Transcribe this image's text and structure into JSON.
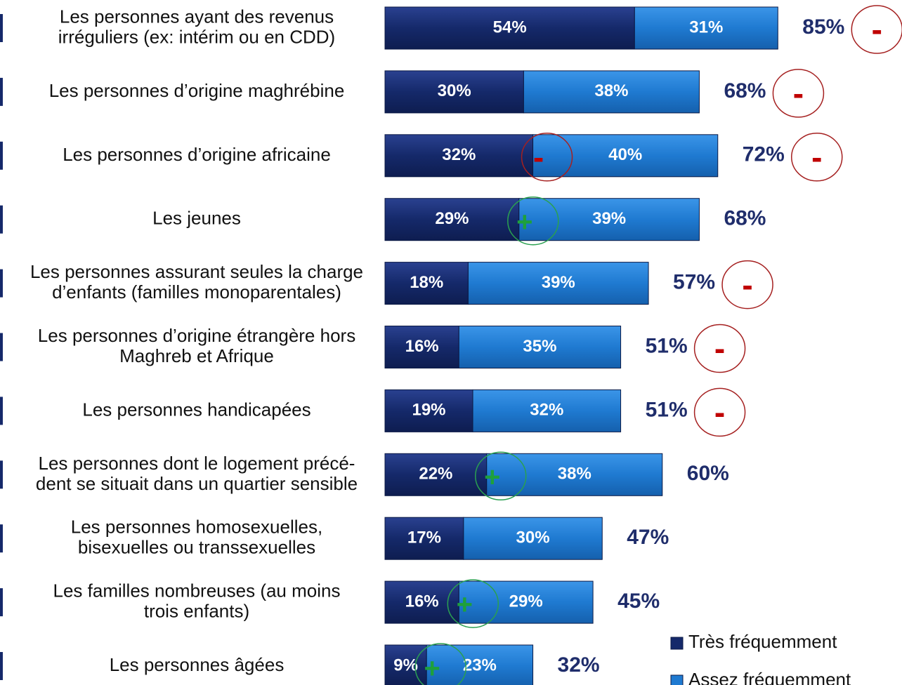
{
  "chart_data": {
    "type": "stacked_bar_horizontal",
    "categories": [
      [
        "Les personnes ayant des revenus",
        "irréguliers (ex: intérim ou en CDD)"
      ],
      [
        "Les personnes d’origine maghrébine"
      ],
      [
        "Les personnes d’origine africaine"
      ],
      [
        "Les jeunes"
      ],
      [
        "Les personnes assurant seules la charge",
        "d’enfants (familles monoparentales)"
      ],
      [
        "Les personnes d’origine étrangère hors",
        "Maghreb et Afrique"
      ],
      [
        "Les personnes handicapées"
      ],
      [
        "Les personnes dont le logement précé-",
        "dent se situait dans un quartier sensible"
      ],
      [
        "Les personnes homosexuelles,",
        "bisexuelles ou transsexuelles"
      ],
      [
        "Les familles nombreuses (au moins",
        "trois enfants)"
      ],
      [
        "Les personnes âgées"
      ]
    ],
    "series": [
      {
        "name": "Très fréquemment",
        "color": "#15296a",
        "values": [
          54,
          30,
          32,
          29,
          18,
          16,
          19,
          22,
          17,
          16,
          9
        ],
        "value_labels": [
          "54%",
          "30%",
          "32%",
          "29%",
          "18%",
          "16%",
          "19%",
          "22%",
          "17%",
          "16%",
          "9%"
        ]
      },
      {
        "name": "Assez fréquemment",
        "color": "#1f7ad1",
        "values": [
          31,
          38,
          40,
          39,
          39,
          35,
          32,
          38,
          30,
          29,
          23
        ],
        "value_labels": [
          "31%",
          "38%",
          "40%",
          "39%",
          "39%",
          "35%",
          "32%",
          "38%",
          "30%",
          "29%",
          "23%"
        ]
      }
    ],
    "totals": [
      85,
      68,
      72,
      68,
      57,
      51,
      51,
      60,
      47,
      45,
      32
    ],
    "total_labels": [
      "85%",
      "68%",
      "72%",
      "68%",
      "57%",
      "51%",
      "51%",
      "60%",
      "47%",
      "45%",
      "32%"
    ],
    "annotations": [
      {
        "text": "-",
        "category": 0,
        "at": "total"
      },
      {
        "text": "-",
        "category": 1,
        "at": "total"
      },
      {
        "text": "-",
        "category": 2,
        "at": "bar"
      },
      {
        "text": "-",
        "category": 2,
        "at": "total"
      },
      {
        "text": "+",
        "category": 3,
        "at": "bar"
      },
      {
        "text": "-",
        "category": 4,
        "at": "total"
      },
      {
        "text": "-",
        "category": 5,
        "at": "total"
      },
      {
        "text": "-",
        "category": 6,
        "at": "total"
      },
      {
        "text": "+",
        "category": 7,
        "at": "bar"
      },
      {
        "text": "+",
        "category": 9,
        "at": "bar"
      },
      {
        "text": "+",
        "category": 10,
        "at": "bar"
      }
    ],
    "xlim": [
      0,
      100
    ]
  }
}
